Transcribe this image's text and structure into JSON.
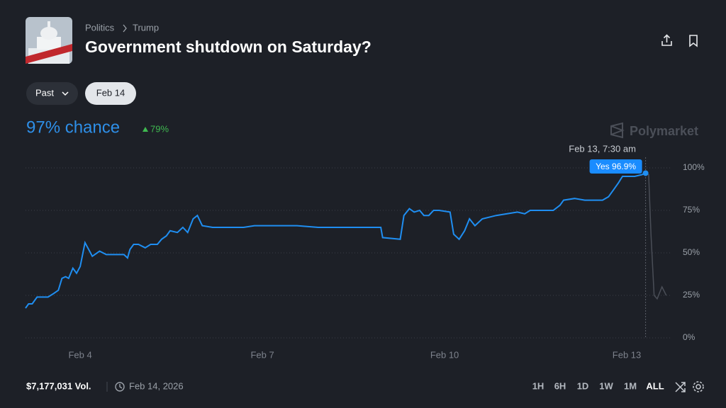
{
  "breadcrumb": [
    "Politics",
    "Trump"
  ],
  "title": "Government shutdown on Saturday?",
  "filters": [
    "Past",
    "Feb 14"
  ],
  "chance": "97% chance",
  "change": "79%",
  "brand": "Polymarket",
  "volume": "$7,177,031 Vol.",
  "date": "Feb 14, 2026",
  "ranges": [
    "1H",
    "6H",
    "1D",
    "1W",
    "1M",
    "ALL"
  ],
  "chart_data": {
    "type": "line",
    "x": [
      3.1,
      3.15,
      3.21,
      3.29,
      3.47,
      3.56,
      3.64,
      3.7,
      3.76,
      3.81,
      3.88,
      3.94,
      4.0,
      4.08,
      4.14,
      4.2,
      4.32,
      4.43,
      4.72,
      4.78,
      4.82,
      4.88,
      4.96,
      5.07,
      5.16,
      5.27,
      5.34,
      5.42,
      5.48,
      5.6,
      5.69,
      5.77,
      5.86,
      5.93,
      6.01,
      6.18,
      6.53,
      6.69,
      6.87,
      7.57,
      7.92,
      8.49,
      8.95,
      8.98,
      9.27,
      9.33,
      9.42,
      9.5,
      9.59,
      9.66,
      9.74,
      9.82,
      9.91,
      10.09,
      10.15,
      10.24,
      10.33,
      10.41,
      10.5,
      10.62,
      10.85,
      11.03,
      11.2,
      11.32,
      11.41,
      11.55,
      11.79,
      11.9,
      11.96,
      12.14,
      12.31,
      12.6,
      12.7,
      12.78,
      12.86,
      12.93,
      13.13,
      13.25,
      13.31,
      13.36,
      13.4,
      13.45,
      13.5,
      13.58,
      13.65
    ],
    "series": [
      {
        "name": "Yes",
        "color": "#1f8ef1",
        "values": [
          17.5,
          20,
          20,
          24,
          24,
          26,
          28,
          35,
          36,
          35,
          41,
          38,
          42,
          56,
          52,
          48,
          51,
          49,
          49,
          47,
          52,
          55,
          55,
          53,
          55,
          55,
          58,
          60,
          63,
          62,
          65,
          62,
          70,
          72,
          66,
          65,
          65,
          65,
          66,
          66,
          65,
          65,
          65,
          59,
          58,
          72,
          76,
          74,
          75,
          72,
          72,
          75,
          75,
          74,
          61,
          58,
          63,
          70,
          66,
          70,
          72,
          73,
          74,
          73,
          75,
          75,
          75,
          78,
          81,
          82,
          81,
          81,
          83,
          87,
          91,
          95,
          95,
          96,
          96.9,
          96,
          60,
          25,
          23,
          30,
          25
        ]
      }
    ],
    "xlim": [
      3.1,
      13.7
    ],
    "ylim": [
      0,
      100
    ],
    "xticks": [
      {
        "value": 4,
        "label": "Feb 4"
      },
      {
        "value": 7,
        "label": "Feb 7"
      },
      {
        "value": 10,
        "label": "Feb 10"
      },
      {
        "value": 13,
        "label": "Feb 13"
      }
    ],
    "yticks": [
      {
        "value": 0,
        "label": "0%"
      },
      {
        "value": 25,
        "label": "25%"
      },
      {
        "value": 50,
        "label": "50%"
      },
      {
        "value": 75,
        "label": "75%"
      },
      {
        "value": 100,
        "label": "100%"
      }
    ],
    "grid": true,
    "hover": {
      "x": 13.31,
      "x_label": "Feb 13, 7:30 am",
      "value": 96.9,
      "value_label": "Yes 96.9%"
    }
  }
}
